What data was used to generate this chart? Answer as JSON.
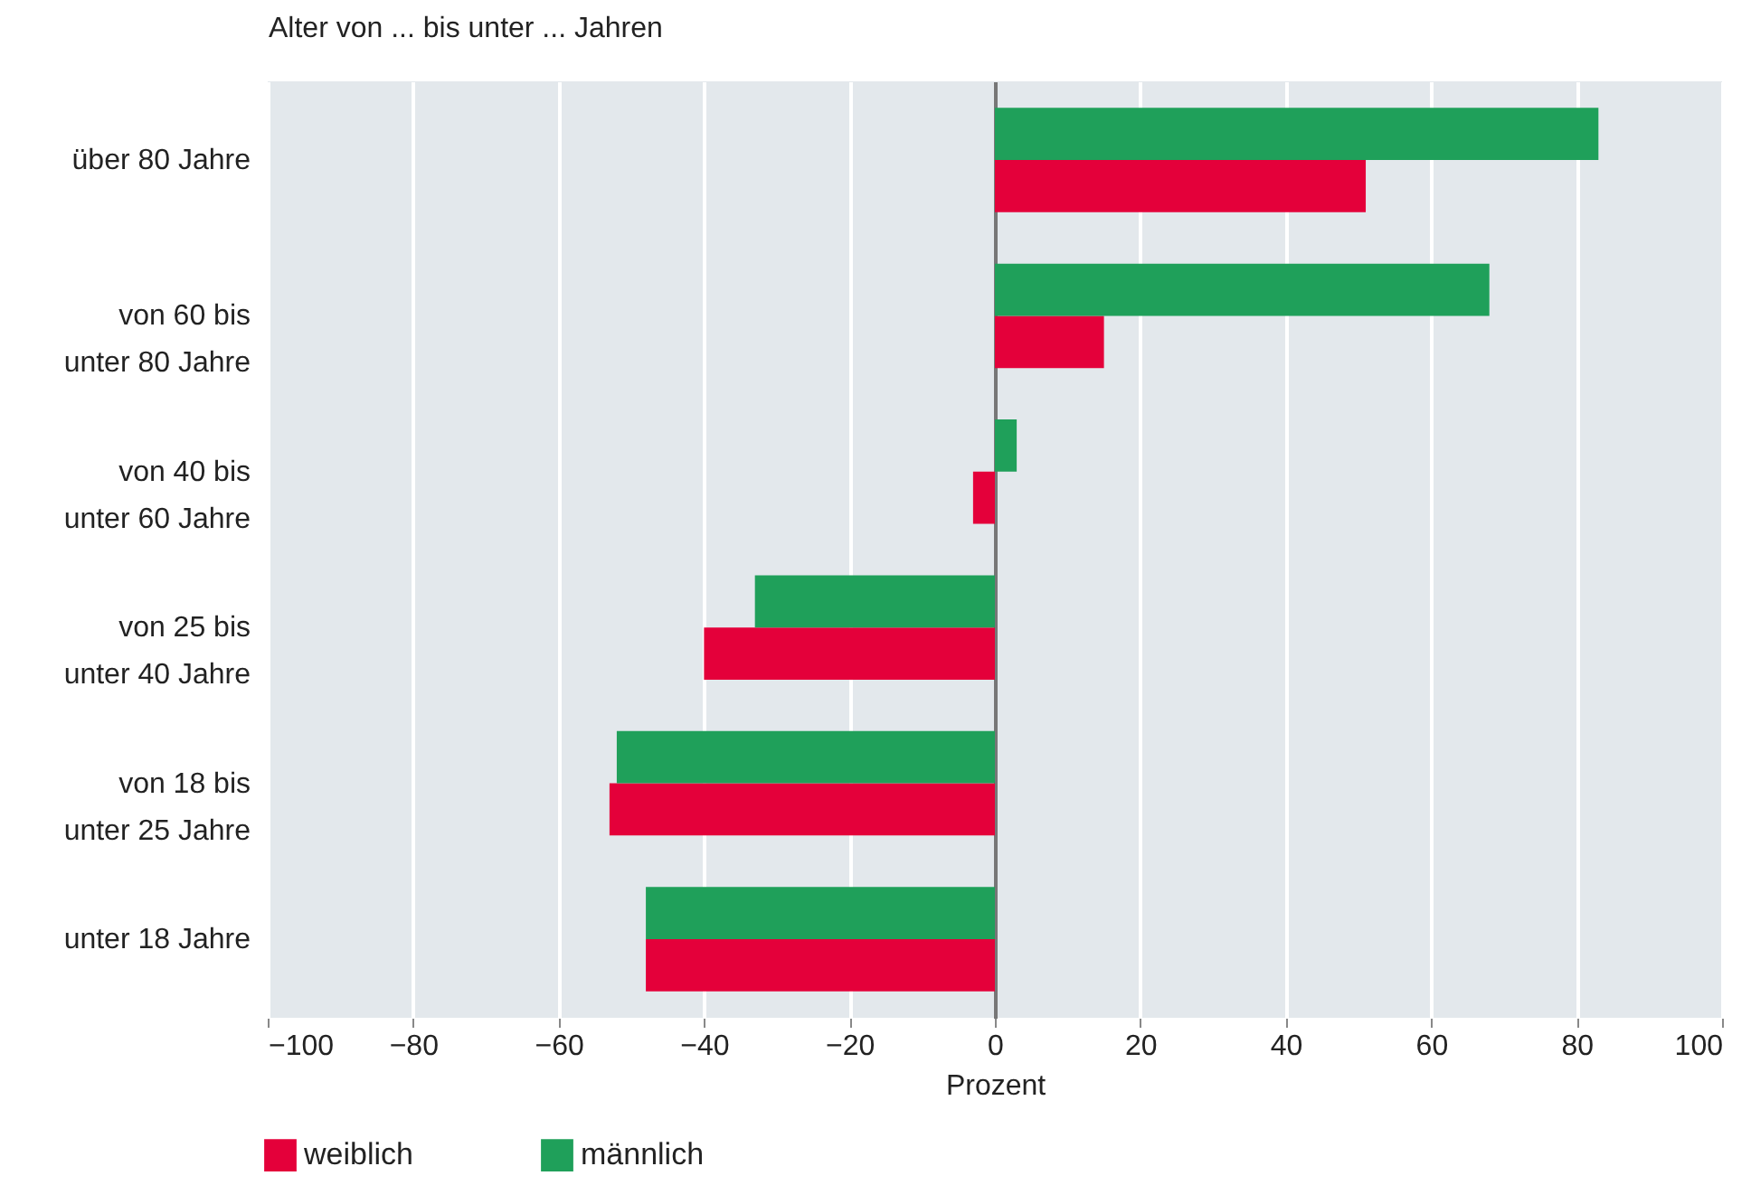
{
  "chart_data": {
    "type": "bar",
    "orientation": "horizontal",
    "ylabel": "Alter von ... bis unter ... Jahren",
    "xlabel": "Prozent",
    "categories": [
      "über 80 Jahre",
      "von 60 bis\nunter 80 Jahre",
      "von 40 bis\nunter 60 Jahre",
      "von 25 bis\nunter 40 Jahre",
      "von 18 bis\nunter 25 Jahre",
      "unter 18 Jahre"
    ],
    "series": [
      {
        "name": "weiblich",
        "color": "#e4003a",
        "values": [
          51,
          15,
          -3,
          -40,
          -53,
          -48
        ]
      },
      {
        "name": "männlich",
        "color": "#1fa05a",
        "values": [
          83,
          68,
          3,
          -33,
          -52,
          -48
        ]
      }
    ],
    "xlim": [
      -100,
      100
    ],
    "xticks": [
      -100,
      -80,
      -60,
      -40,
      -20,
      0,
      20,
      40,
      60,
      80,
      100
    ],
    "grid": "x",
    "legend": "bottom left"
  }
}
